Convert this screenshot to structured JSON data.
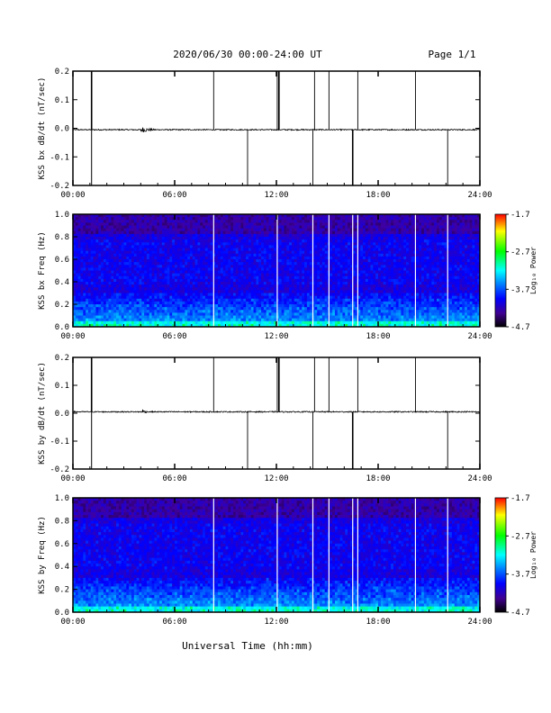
{
  "header": {
    "title": "2020/06/30  00:00-24:00 UT",
    "page": "Page 1/1"
  },
  "footer": {
    "xlabel": "Universal Time (hh:mm)"
  },
  "colorbar": {
    "ticks": [
      "-1.7",
      "-2.7",
      "-3.7",
      "-4.7"
    ],
    "label": "Log₁₀ Power",
    "colors": [
      "#ff0000",
      "#ffff00",
      "#00ff00",
      "#00ffff",
      "#0080ff",
      "#0000ff",
      "#4000a0",
      "#000000"
    ]
  },
  "chart_data": [
    {
      "type": "line",
      "ylabel": "KSS bx dB/dt (nT/sec)",
      "x_range_hours": [
        0,
        24
      ],
      "xticks": [
        "00:00",
        "06:00",
        "12:00",
        "18:00",
        "24:00"
      ],
      "ylim": [
        -0.2,
        0.2
      ],
      "yticks": [
        "0.2",
        "0.1",
        "0.0",
        "-0.1",
        "-0.2"
      ],
      "baseline": -0.005,
      "gap_spikes_hours": [
        1.1,
        8.3,
        10.3,
        12.05,
        12.15,
        14.15,
        14.25,
        15.1,
        16.5,
        16.8,
        20.2,
        22.1
      ],
      "disturbance_hours": [
        4.0,
        5.2
      ]
    },
    {
      "type": "heatmap",
      "ylabel": "KSS bx Freq (Hz)",
      "x_range_hours": [
        0,
        24
      ],
      "xticks": [
        "00:00",
        "06:00",
        "12:00",
        "18:00",
        "24:00"
      ],
      "ylim": [
        0,
        1.0
      ],
      "yticks": [
        "1.0",
        "0.8",
        "0.6",
        "0.4",
        "0.2",
        "0.0"
      ],
      "gaps_hours": [
        8.3,
        12.05,
        14.15,
        15.1,
        16.5,
        16.8,
        20.2,
        22.1
      ],
      "colorbar_range": [
        -4.7,
        -1.7
      ],
      "colorbar_label": "Log₁₀ Power"
    },
    {
      "type": "line",
      "ylabel": "KSS by dB/dt (nT/sec)",
      "x_range_hours": [
        0,
        24
      ],
      "xticks": [
        "00:00",
        "06:00",
        "12:00",
        "18:00",
        "24:00"
      ],
      "ylim": [
        -0.2,
        0.2
      ],
      "yticks": [
        "0.2",
        "0.1",
        "0.0",
        "-0.1",
        "-0.2"
      ],
      "baseline": 0.005,
      "gap_spikes_hours": [
        1.1,
        8.3,
        10.3,
        12.05,
        12.15,
        14.15,
        14.25,
        15.1,
        16.5,
        16.8,
        20.2,
        22.1
      ],
      "disturbance_hours": [
        4.1,
        4.5
      ]
    },
    {
      "type": "heatmap",
      "ylabel": "KSS by Freq (Hz)",
      "x_range_hours": [
        0,
        24
      ],
      "xticks": [
        "00:00",
        "06:00",
        "12:00",
        "18:00",
        "24:00"
      ],
      "ylim": [
        0,
        1.0
      ],
      "yticks": [
        "1.0",
        "0.8",
        "0.6",
        "0.4",
        "0.2",
        "0.0"
      ],
      "gaps_hours": [
        8.3,
        12.05,
        14.15,
        15.1,
        16.5,
        16.8,
        20.2,
        22.1
      ],
      "colorbar_range": [
        -4.7,
        -1.7
      ],
      "colorbar_label": "Log₁₀ Power"
    }
  ]
}
